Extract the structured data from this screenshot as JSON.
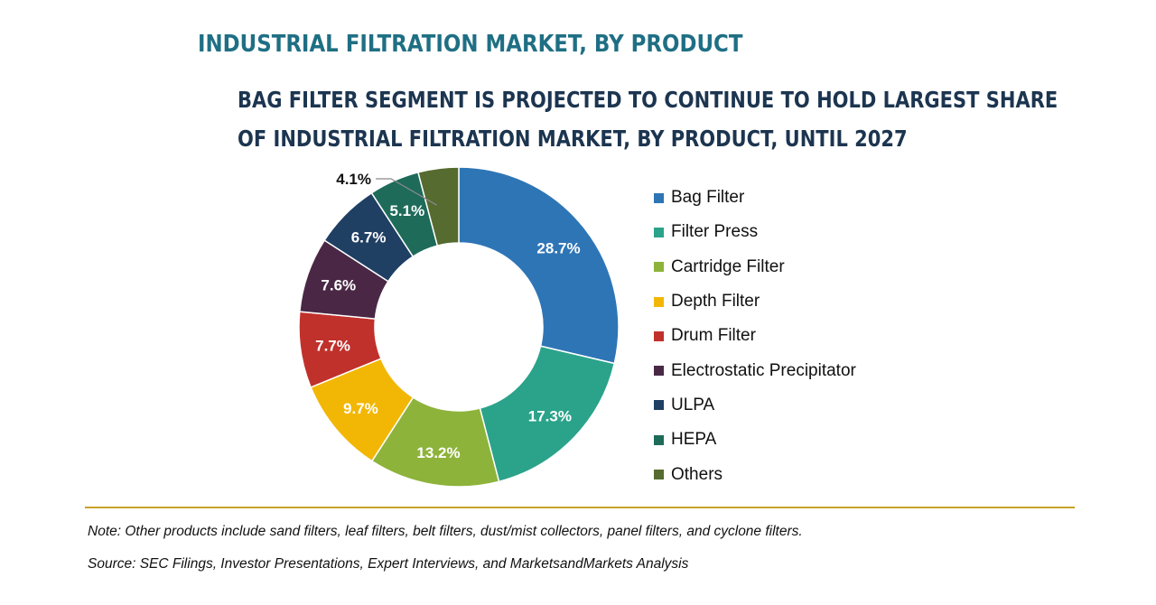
{
  "header": {
    "title": "INDUSTRIAL FILTRATION MARKET, BY PRODUCT",
    "subtitle_line1": "BAG FILTER SEGMENT IS PROJECTED TO CONTINUE TO HOLD LARGEST SHARE",
    "subtitle_line2": "OF INDUSTRIAL FILTRATION MARKET, BY PRODUCT, UNTIL 2027"
  },
  "chart_data": {
    "type": "pie",
    "style": "donut",
    "title": "INDUSTRIAL FILTRATION MARKET, BY PRODUCT",
    "subtitle": "BAG FILTER SEGMENT IS PROJECTED TO CONTINUE TO HOLD LARGEST SHARE OF INDUSTRIAL FILTRATION MARKET, BY PRODUCT, UNTIL 2027",
    "legend_position": "right",
    "start": "12 o'clock, clockwise",
    "slices": [
      {
        "name": "Bag Filter",
        "value": 28.7,
        "label": "28.7%",
        "color": "#2e75b6"
      },
      {
        "name": "Filter Press",
        "value": 17.3,
        "label": "17.3%",
        "color": "#2aa38a"
      },
      {
        "name": "Cartridge Filter",
        "value": 13.2,
        "label": "13.2%",
        "color": "#8db33b"
      },
      {
        "name": "Depth Filter",
        "value": 9.7,
        "label": "9.7%",
        "color": "#f2b705"
      },
      {
        "name": "Drum Filter",
        "value": 7.7,
        "label": "7.7%",
        "color": "#c0312b"
      },
      {
        "name": "Electrostatic Precipitator",
        "value": 7.6,
        "label": "7.6%",
        "color": "#4a2845"
      },
      {
        "name": "ULPA",
        "value": 6.7,
        "label": "6.7%",
        "color": "#1f3f63"
      },
      {
        "name": "HEPA",
        "value": 5.1,
        "label": "5.1%",
        "color": "#1e6b5a"
      },
      {
        "name": "Others",
        "value": 4.1,
        "label": "4.1%",
        "color": "#556b2f"
      }
    ]
  },
  "footer": {
    "note": "Note: Other products include sand filters, leaf filters, belt filters, dust/mist collectors, panel filters, and cyclone filters.",
    "source": "Source: SEC Filings, Investor Presentations, Expert Interviews, and MarketsandMarkets Analysis"
  }
}
